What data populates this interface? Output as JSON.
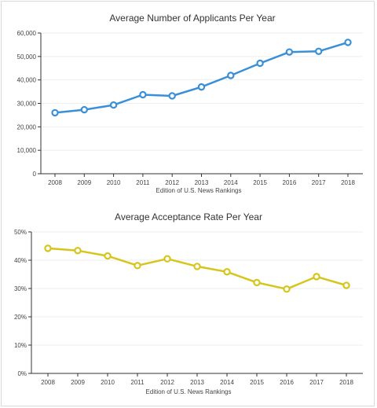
{
  "chart_data": [
    {
      "type": "line",
      "title": "Average Number of Applicants Per Year",
      "xlabel": "Edition of U.S. News Rankings",
      "ylabel": "",
      "categories": [
        "2008",
        "2009",
        "2010",
        "2011",
        "2012",
        "2013",
        "2014",
        "2015",
        "2016",
        "2017",
        "2018"
      ],
      "series": [
        {
          "values": [
            26000,
            27300,
            29300,
            33700,
            33200,
            37000,
            41900,
            47100,
            51900,
            52200,
            56000
          ],
          "color": "#3a8fd9"
        }
      ],
      "ylim": [
        0,
        60000
      ],
      "yticks": [
        0,
        10000,
        20000,
        30000,
        40000,
        50000,
        60000
      ],
      "ytick_labels": [
        "0",
        "10,000",
        "20,000",
        "30,000",
        "40,000",
        "50,000",
        "60,000"
      ],
      "grid": true,
      "legend": "none"
    },
    {
      "type": "line",
      "title": "Average Acceptance Rate Per Year",
      "xlabel": "Edition of U.S. News Rankings",
      "ylabel": "",
      "categories": [
        "2008",
        "2009",
        "2010",
        "2011",
        "2012",
        "2013",
        "2014",
        "2015",
        "2016",
        "2017",
        "2018"
      ],
      "series": [
        {
          "values": [
            44.2,
            43.4,
            41.5,
            38.1,
            40.5,
            37.8,
            35.9,
            32.1,
            29.8,
            34.2,
            31.1
          ],
          "color": "#d8c51c"
        }
      ],
      "ylim": [
        0,
        50
      ],
      "yticks": [
        0,
        10,
        20,
        30,
        40,
        50
      ],
      "ytick_labels": [
        "0%",
        "10%",
        "20%",
        "30%",
        "40%",
        "50%"
      ],
      "grid": true,
      "legend": "none"
    }
  ]
}
